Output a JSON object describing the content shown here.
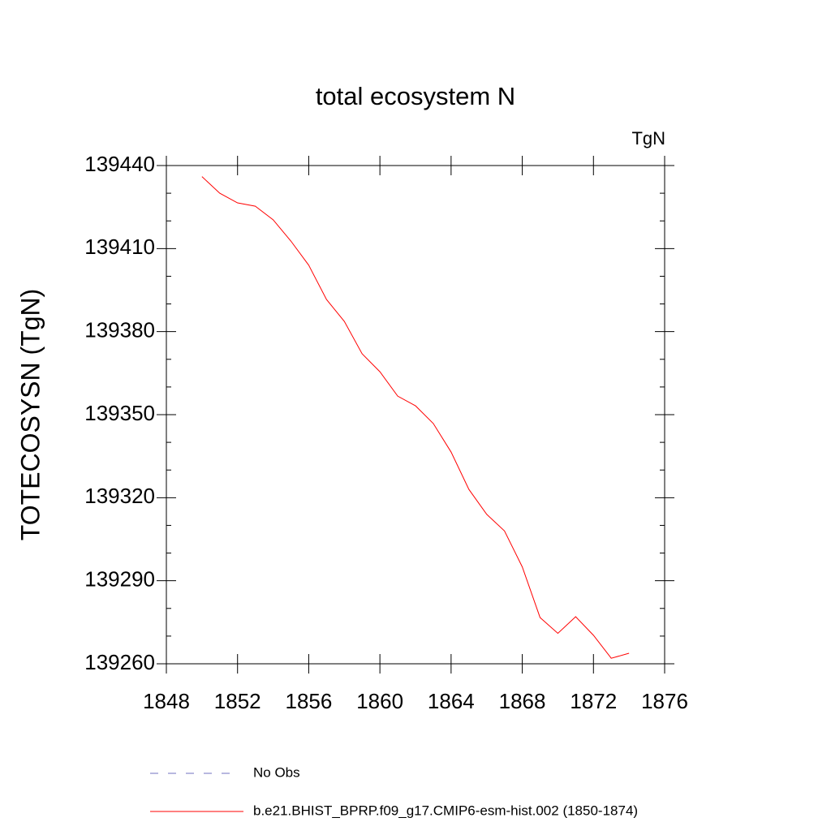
{
  "chart_data": {
    "type": "line",
    "title": "total ecosystem N",
    "units": "TgN",
    "y_label": "TOTECOSYSN  (TgN)",
    "x": [
      1850,
      1851,
      1852,
      1853,
      1854,
      1855,
      1856,
      1857,
      1858,
      1859,
      1860,
      1861,
      1862,
      1863,
      1864,
      1865,
      1866,
      1867,
      1868,
      1869,
      1870,
      1871,
      1872,
      1873,
      1874
    ],
    "series": [
      {
        "name": "b.e21.BHIST_BPRP.f09_g17.CMIP6-esm-hist.002 (1850-1874)",
        "color": "#ff0000",
        "values": [
          139436,
          139430,
          139426.5,
          139425.3,
          139420.4,
          139412.7,
          139404,
          139391.6,
          139383.7,
          139372,
          139365.5,
          139356.7,
          139353.2,
          139346.8,
          139336.5,
          139323,
          139314,
          139308,
          139295,
          139276.7,
          139271,
          139277,
          139270.3,
          139262,
          139263.8
        ]
      }
    ],
    "reference_entries": [
      {
        "name": "No Obs",
        "color": "#7070c0",
        "dash": "10 12"
      }
    ],
    "xlim": [
      1848,
      1876
    ],
    "xticks": [
      1848,
      1852,
      1856,
      1860,
      1864,
      1868,
      1872,
      1876
    ],
    "ylim": [
      139260,
      139440
    ],
    "yticks": [
      139260,
      139290,
      139320,
      139350,
      139380,
      139410,
      139440
    ]
  }
}
